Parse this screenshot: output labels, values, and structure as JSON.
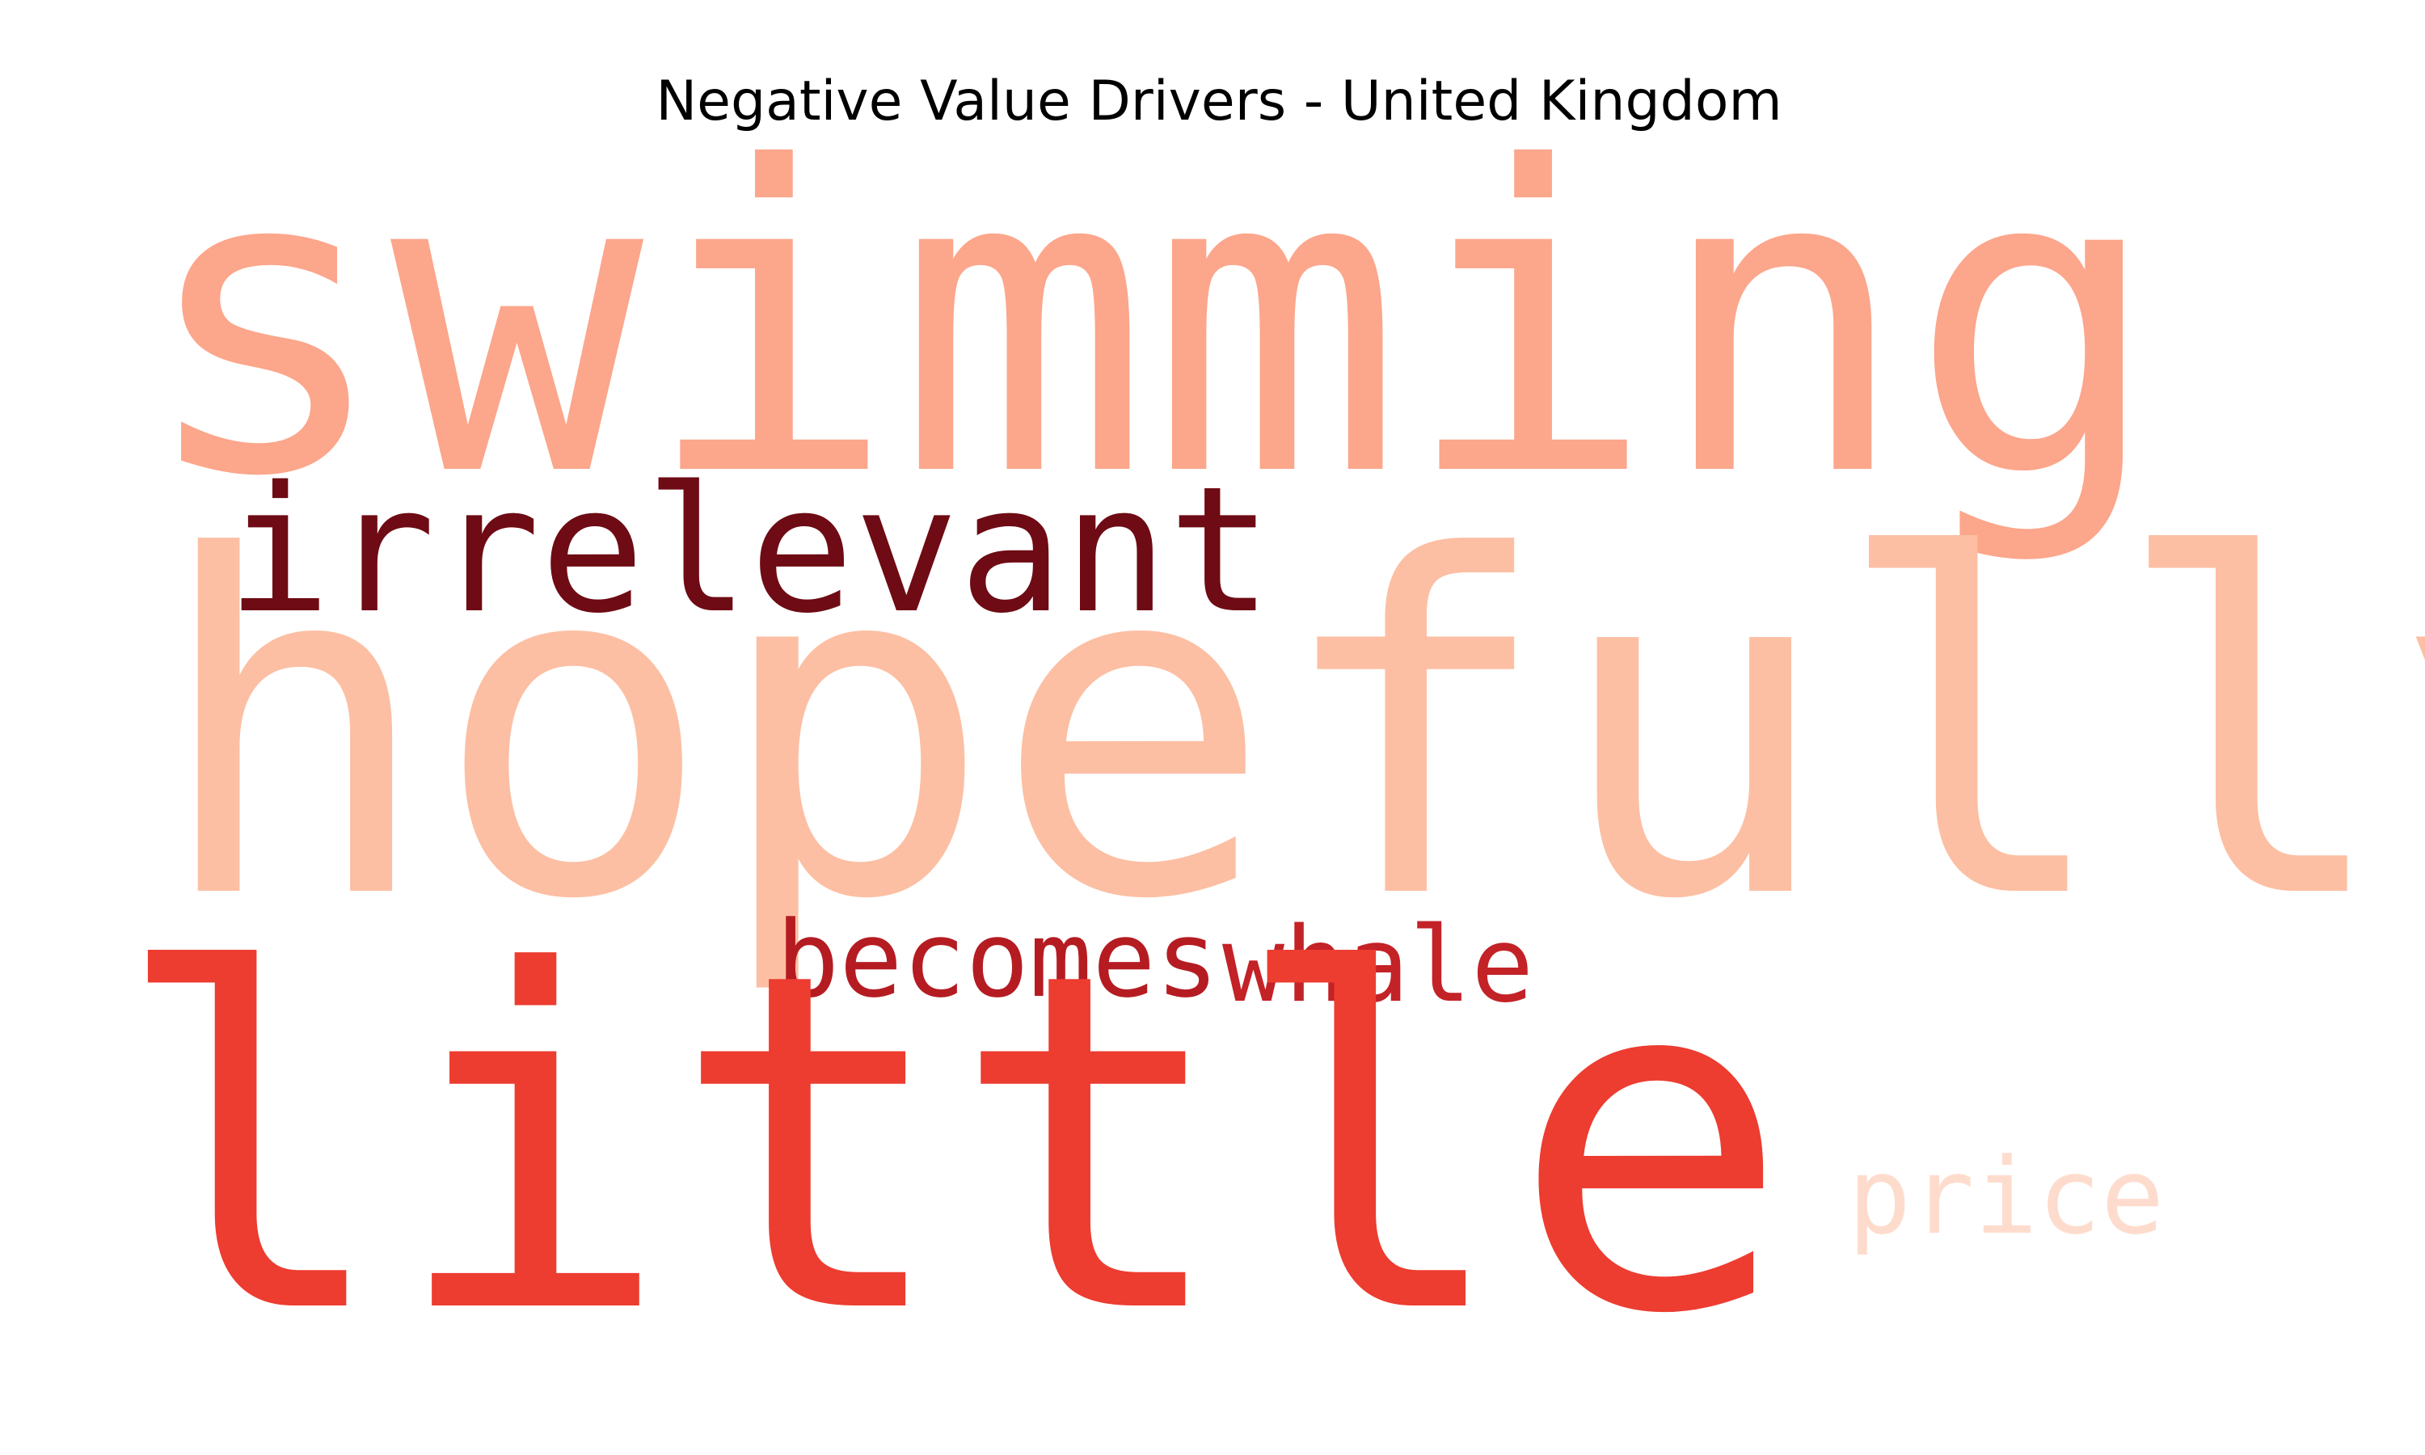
{
  "chart_data": {
    "type": "wordcloud",
    "title": "Negative Value Drivers - United Kingdom",
    "colormap": "Reds",
    "words": [
      {
        "text": "swimming",
        "color": "#fca68b"
      },
      {
        "text": "irrelevant",
        "color": "#6e0b14"
      },
      {
        "text": "hopefully",
        "color": "#fcbfa3"
      },
      {
        "text": "becomes",
        "color": "#b51c22"
      },
      {
        "text": "whale",
        "color": "#c32227"
      },
      {
        "text": "little",
        "color": "#ed3c30"
      },
      {
        "text": "price",
        "color": "#fedccd"
      }
    ]
  }
}
